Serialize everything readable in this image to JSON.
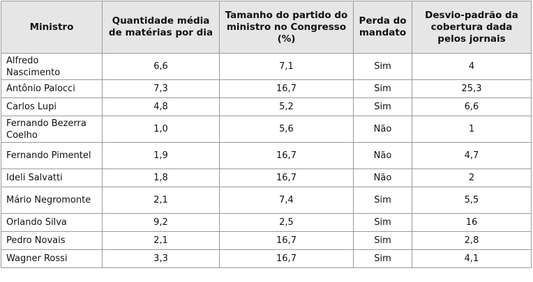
{
  "table": {
    "header": [
      "Ministro",
      "Quantidade média de matérias por dia",
      "Tamanho do partido do ministro no Congresso (%)",
      "Perda do mandato",
      "Desvio-padrão da cobertura dada pelos jornais"
    ],
    "rows": [
      [
        "Alfredo Nascimento",
        "6,6",
        "7,1",
        "Sim",
        "4"
      ],
      [
        "Antônio Palocci",
        "7,3",
        "16,7",
        "Sim",
        "25,3"
      ],
      [
        "Carlos Lupi",
        "4,8",
        "5,2",
        "Sim",
        "6,6"
      ],
      [
        "Fernando Bezerra Coelho",
        "1,0",
        "5,6",
        "Não",
        "1"
      ],
      [
        "Fernando Pimentel",
        "1,9",
        "16,7",
        "Não",
        "4,7"
      ],
      [
        "Ideli Salvatti",
        "1,8",
        "16,7",
        "Não",
        "2"
      ],
      [
        "Mário Negromonte",
        "2,1",
        "7,4",
        "Sim",
        "5,5"
      ],
      [
        "Orlando Silva",
        "9,2",
        "2,5",
        "Sim",
        "16"
      ],
      [
        "Pedro Novais",
        "2,1",
        "16,7",
        "Sim",
        "2,8"
      ],
      [
        "Wagner Rossi",
        "3,3",
        "16,7",
        "Sim",
        "4,1"
      ]
    ]
  }
}
